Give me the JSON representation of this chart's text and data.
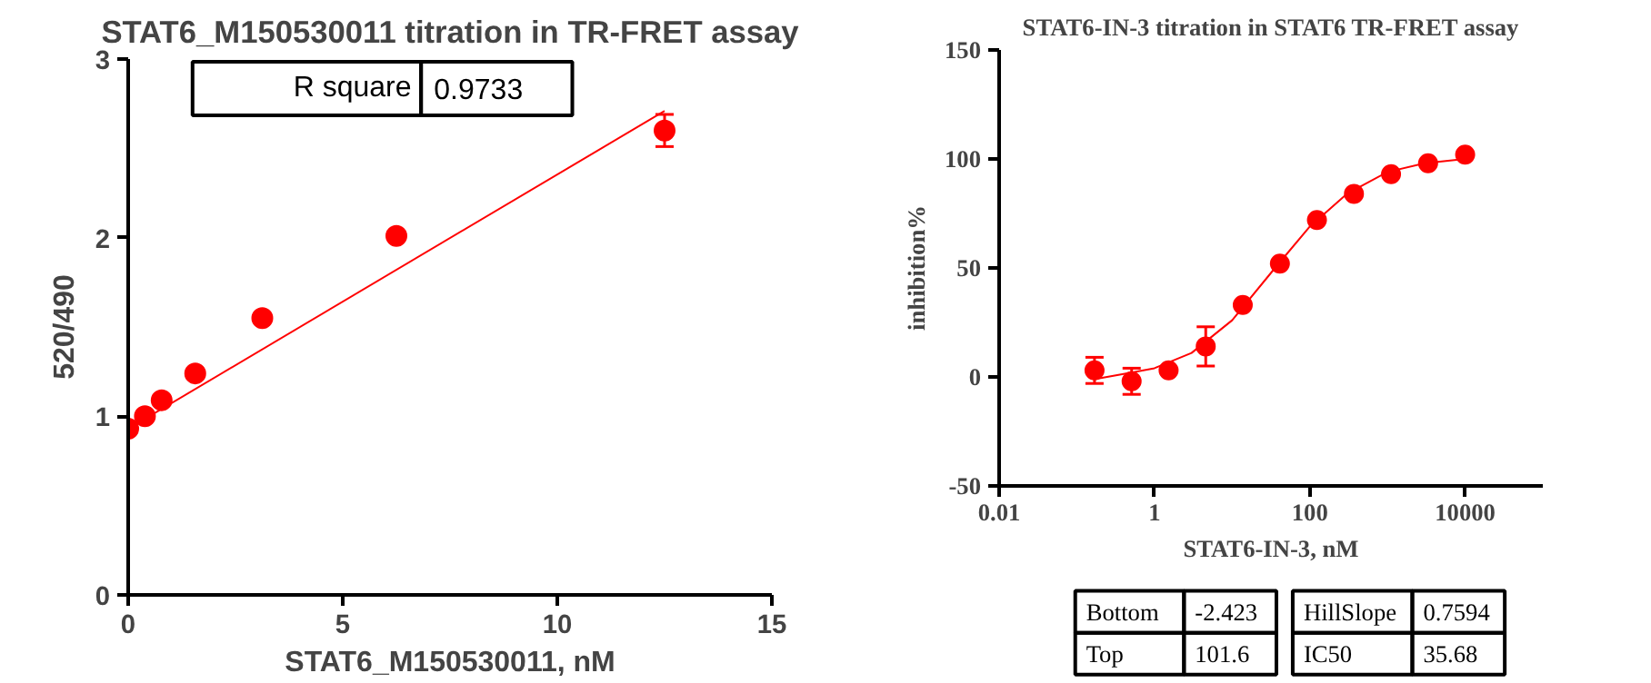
{
  "chart_data": [
    {
      "type": "scatter",
      "title": "STAT6_M150530011 titration in TR-FRET assay",
      "xlabel": "STAT6_M150530011, nM",
      "ylabel": "520/490",
      "x": [
        0,
        0.39,
        0.78,
        1.5625,
        3.125,
        6.25,
        12.5
      ],
      "series": [
        {
          "color": "#ff0000",
          "marker": "circle",
          "values": [
            0.93,
            1.0,
            1.09,
            1.24,
            1.55,
            2.01,
            2.6
          ],
          "errors": [
            null,
            null,
            null,
            null,
            null,
            null,
            0.09
          ]
        },
        {
          "type": "line",
          "color": "#ff0000",
          "x": [
            0,
            12.5
          ],
          "values": [
            0.93,
            2.71
          ]
        }
      ],
      "xlim": [
        0,
        15
      ],
      "ylim": [
        0,
        3
      ],
      "xticks": [
        0,
        5,
        10,
        15
      ],
      "yticks": [
        0,
        1,
        2,
        3
      ],
      "grid": false,
      "annotations": [
        "R square",
        "0.9733"
      ]
    },
    {
      "type": "scatter",
      "title": "STAT6-IN-3 titration in STAT6 TR-FRET assay",
      "xlabel": "STAT6-IN-3, nM",
      "ylabel": "inhibition%",
      "x": [
        0.169,
        0.508,
        1.52,
        4.57,
        13.7,
        41.2,
        123.5,
        370,
        1111,
        3333,
        10000
      ],
      "series": [
        {
          "color": "#ff0000",
          "marker": "circle",
          "values": [
            3,
            -2,
            3,
            14,
            33,
            52,
            72,
            84,
            93,
            98,
            102
          ],
          "errors": [
            6,
            6,
            null,
            9,
            null,
            null,
            null,
            null,
            null,
            null,
            null
          ]
        },
        {
          "type": "line",
          "color": "#ff0000",
          "x": [
            0.169,
            0.5,
            1,
            3,
            10,
            35.68,
            100,
            300,
            1000,
            3000,
            10000
          ],
          "values": [
            -1,
            2,
            4,
            11,
            26,
            50,
            69,
            84,
            94,
            98,
            100
          ]
        }
      ],
      "xlim": [
        0.01,
        100000
      ],
      "ylim": [
        -50,
        150
      ],
      "xticks": [
        0.01,
        1,
        100,
        10000
      ],
      "yticks": [
        -50,
        0,
        50,
        100,
        150
      ],
      "log": "x",
      "grid": false,
      "annotations": [
        "Bottom",
        "-2.423",
        "Top",
        "101.6",
        "HillSlope",
        "0.7594",
        "IC50",
        "35.68"
      ]
    }
  ]
}
